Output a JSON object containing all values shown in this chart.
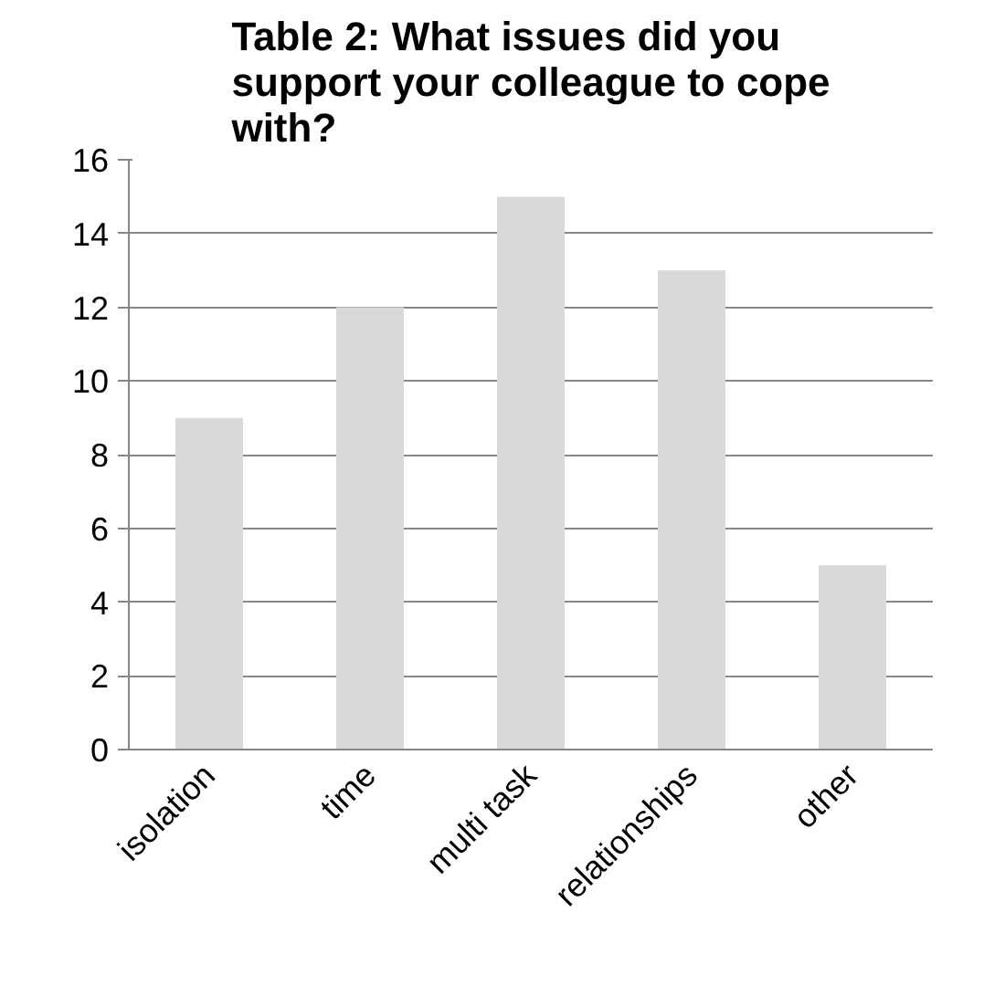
{
  "chart_data": {
    "type": "bar",
    "title": "Table 2: What issues did you support your colleague to cope with?",
    "categories": [
      "isolation",
      "time",
      "multi task",
      "relationships",
      "other"
    ],
    "values": [
      9,
      12,
      15,
      13,
      5
    ],
    "color": "#d9d9d9",
    "ylim": [
      0,
      16
    ],
    "yticks": [
      0,
      2,
      4,
      6,
      8,
      10,
      12,
      14,
      16
    ],
    "grid": "y"
  }
}
